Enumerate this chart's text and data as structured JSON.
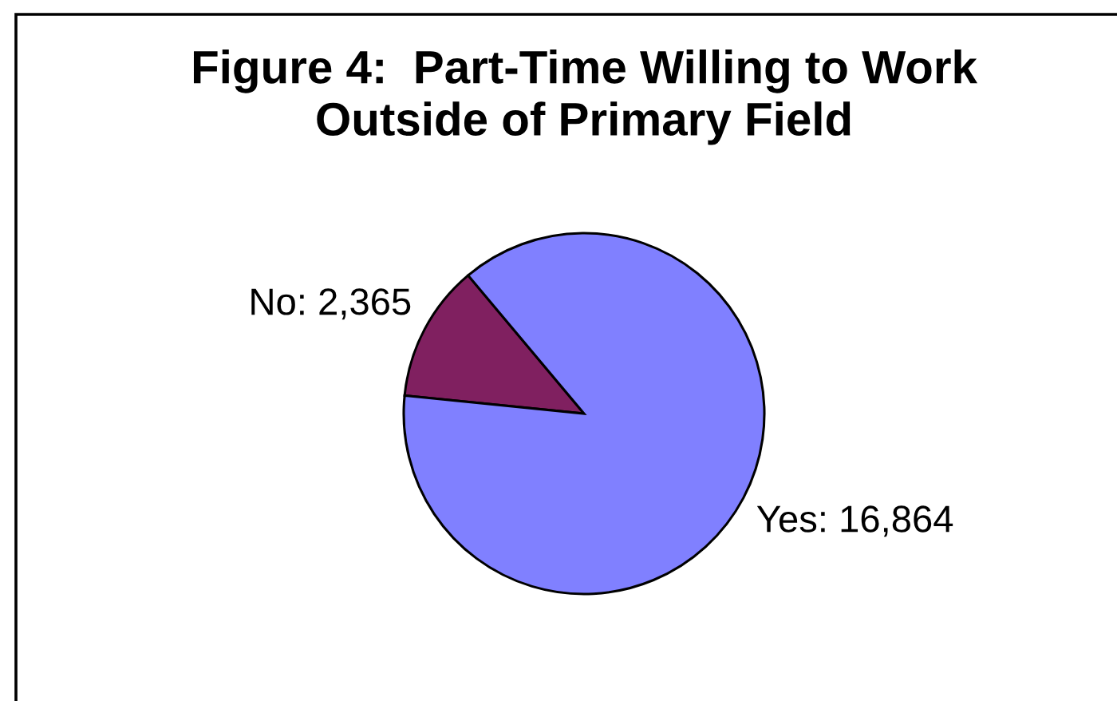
{
  "chart_data": {
    "type": "pie",
    "title": "Figure 4:  Part-Time Willing to Work\nOutside of Primary Field",
    "categories": [
      "No",
      "Yes"
    ],
    "values": [
      2365,
      16864
    ],
    "colors": [
      "#802060",
      "#8080ff"
    ],
    "value_labels": [
      "2,365",
      "16,864"
    ]
  }
}
